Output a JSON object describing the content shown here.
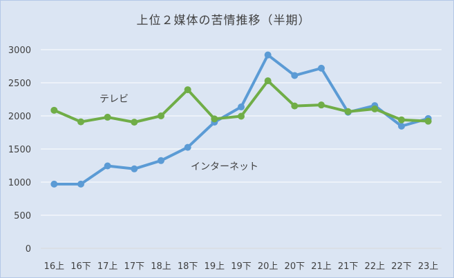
{
  "chart_data": {
    "type": "line",
    "title": "上位２媒体の苦情推移（半期）",
    "xlabel": "",
    "ylabel": "",
    "categories": [
      "16上",
      "16下",
      "17上",
      "17下",
      "18上",
      "18下",
      "19上",
      "19下",
      "20上",
      "20下",
      "21上",
      "21下",
      "22上",
      "22下",
      "23上"
    ],
    "ylim": [
      0,
      3000
    ],
    "yticks": [
      0,
      500,
      1000,
      1500,
      2000,
      2500,
      3000
    ],
    "grid": true,
    "series": [
      {
        "name": "インターネット",
        "color": "#5b9bd5",
        "values": [
          970,
          970,
          1245,
          1200,
          1325,
          1525,
          1905,
          2135,
          2920,
          2610,
          2720,
          2055,
          2155,
          1845,
          1960
        ]
      },
      {
        "name": "テレビ",
        "color": "#70ad47",
        "values": [
          2085,
          1910,
          1980,
          1905,
          2000,
          2395,
          1955,
          1995,
          2530,
          2150,
          2165,
          2065,
          2105,
          1940,
          1920
        ]
      }
    ]
  }
}
